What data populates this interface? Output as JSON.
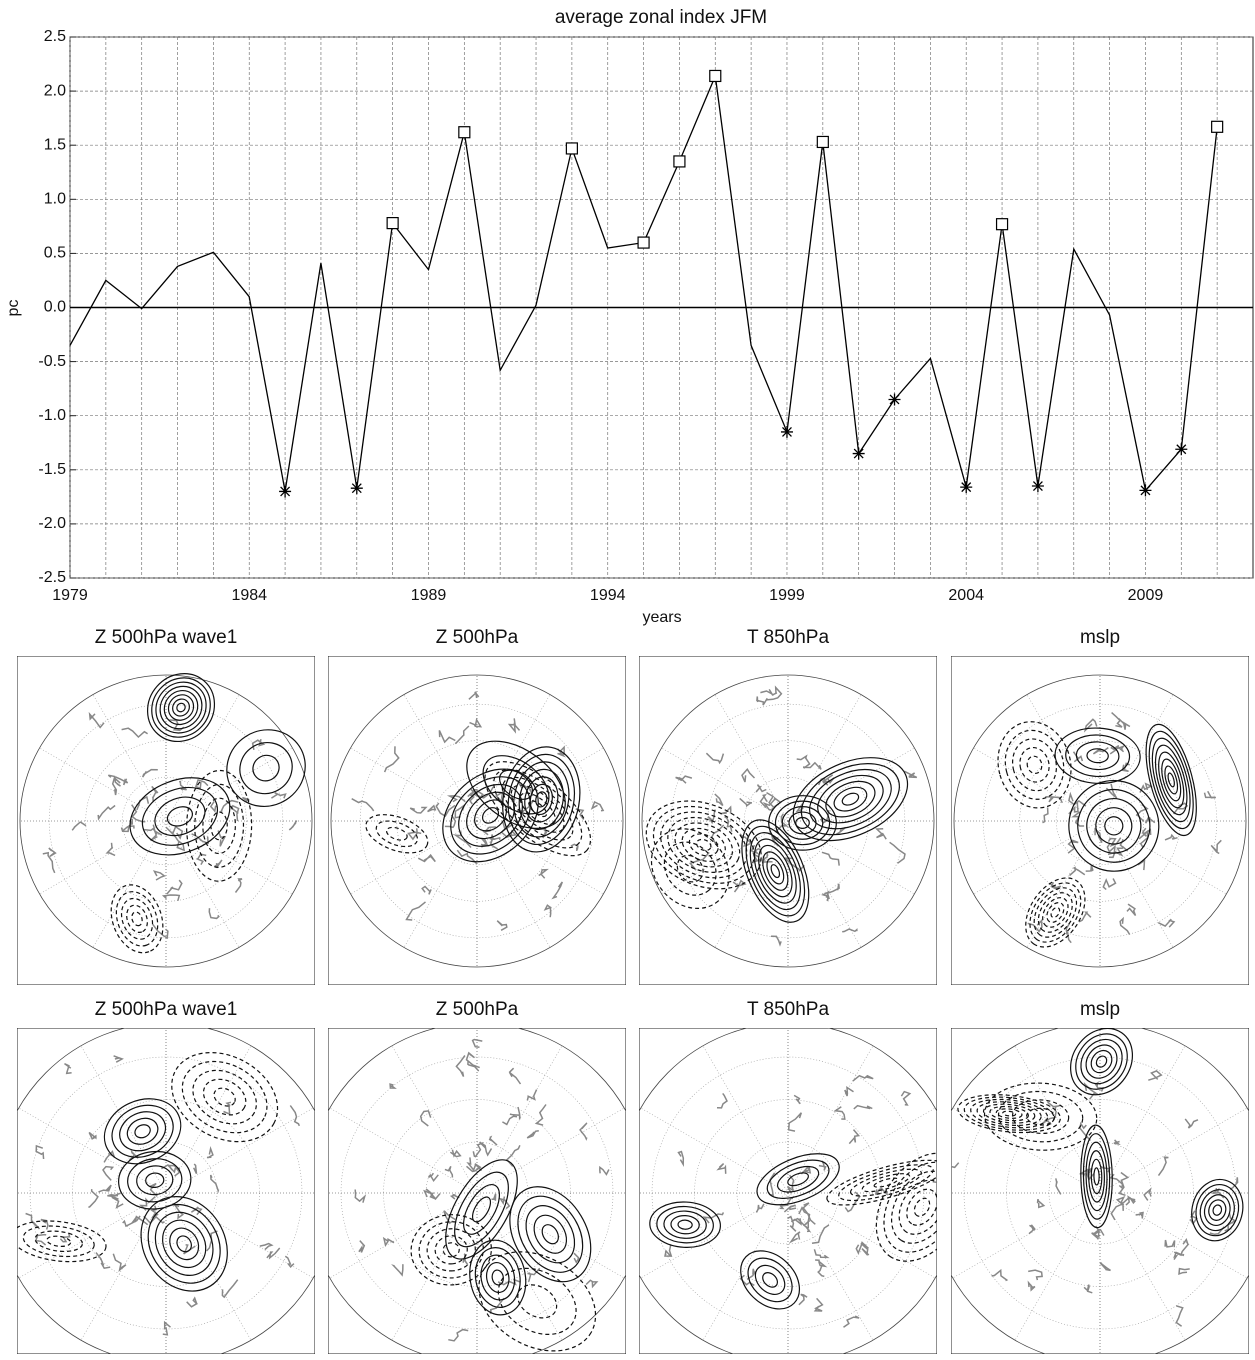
{
  "chart_data": {
    "type": "line",
    "title": "average zonal index JFM",
    "xlabel": "years",
    "ylabel": "pc",
    "x": [
      1979,
      1980,
      1981,
      1982,
      1983,
      1984,
      1985,
      1986,
      1987,
      1988,
      1989,
      1990,
      1991,
      1992,
      1993,
      1994,
      1995,
      1996,
      1997,
      1998,
      1999,
      2000,
      2001,
      2002,
      2003,
      2004,
      2005,
      2006,
      2007,
      2008,
      2009,
      2010,
      2011
    ],
    "values": [
      -0.35,
      0.25,
      -0.01,
      0.38,
      0.51,
      0.1,
      -1.7,
      0.41,
      -1.67,
      0.78,
      0.35,
      1.62,
      -0.58,
      0.02,
      1.47,
      0.55,
      0.6,
      1.35,
      2.14,
      -0.35,
      -1.15,
      1.53,
      -1.35,
      -0.85,
      -0.47,
      -1.66,
      0.77,
      -1.65,
      0.54,
      -0.07,
      -1.69,
      -1.31,
      1.67
    ],
    "markers": [
      null,
      null,
      null,
      null,
      null,
      null,
      "star",
      null,
      "star",
      "square",
      null,
      "square",
      null,
      null,
      "square",
      null,
      "square",
      "square",
      "square",
      null,
      "star",
      "square",
      "star",
      "star",
      null,
      "star",
      "square",
      "star",
      null,
      null,
      "star",
      "star",
      "square"
    ],
    "color": "#000000",
    "xlim": [
      1979,
      2012
    ],
    "xticks": [
      1979,
      1984,
      1989,
      1994,
      1999,
      2004,
      2009
    ],
    "xgrid": [
      1980,
      1981,
      1982,
      1983,
      1985,
      1986,
      1987,
      1988,
      1990,
      1991,
      1992,
      1993,
      1995,
      1996,
      1997,
      1998,
      2000,
      2001,
      2002,
      2003,
      2005,
      2006,
      2007,
      2008,
      2010,
      2011
    ],
    "ylim": [
      -2.5,
      2.5
    ],
    "yticks": [
      2.5,
      {
        "value": 2,
        "label": "2.0"
      },
      1.5,
      {
        "value": 1,
        "label": "1.0"
      },
      0.5,
      {
        "value": 0,
        "label": "0.0"
      },
      -0.5,
      {
        "value": -1,
        "label": "-1.0"
      },
      -1.5,
      {
        "value": -2,
        "label": "-2.0"
      },
      -2.5
    ],
    "grid": true,
    "zero_line": true
  },
  "panels": [
    "Z 500hPa wave1",
    "Z 500hPa",
    "T 850hPa",
    "mslp",
    "Z 500hPa wave1",
    "Z 500hPa",
    "T 850hPa",
    "mslp"
  ]
}
